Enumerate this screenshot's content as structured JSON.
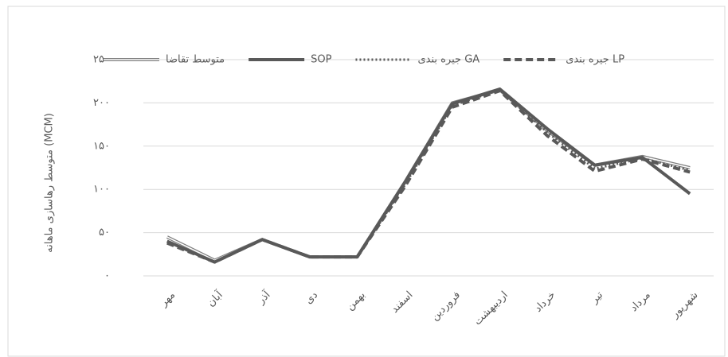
{
  "chart_data": {
    "type": "line",
    "y_label": "متوسط رهاسازی ماهانه (MCM)",
    "categories": [
      "مهر",
      "آبان",
      "آذر",
      "دی",
      "بهمن",
      "اسفند",
      "فروردین",
      "اردیبهشت",
      "خرداد",
      "تیر",
      "مرداد",
      "شهریور"
    ],
    "series": [
      {
        "name": "متوسط تقاضا",
        "color": "#7f7f7f",
        "style": "double",
        "values": [
          45,
          18,
          42,
          22,
          22,
          108,
          200,
          215,
          168,
          128,
          138,
          125
        ]
      },
      {
        "name": "SOP",
        "color": "#595959",
        "style": "solid",
        "values": [
          40,
          16,
          42,
          22,
          22,
          108,
          199,
          216,
          170,
          128,
          137,
          95
        ]
      },
      {
        "name": "جیره بندی GA",
        "color": "#595959",
        "style": "dotted",
        "values": [
          40,
          16,
          42,
          22,
          22,
          105,
          197,
          215,
          166,
          124,
          136,
          122
        ]
      },
      {
        "name": "جیره بندی LP",
        "color": "#595959",
        "style": "dashed",
        "values": [
          38,
          16,
          42,
          22,
          22,
          103,
          195,
          214,
          162,
          121,
          135,
          120
        ]
      }
    ],
    "ylim": [
      0,
      250
    ],
    "yticks": [
      {
        "value": 0,
        "label": "۰"
      },
      {
        "value": 50,
        "label": "۵۰"
      },
      {
        "value": 100,
        "label": "۱۰۰"
      },
      {
        "value": 150,
        "label": "۱۵۰"
      },
      {
        "value": 200,
        "label": "۲۰۰"
      },
      {
        "value": 250,
        "label": "۲۵۰"
      }
    ],
    "grid": true,
    "legend": "top"
  }
}
